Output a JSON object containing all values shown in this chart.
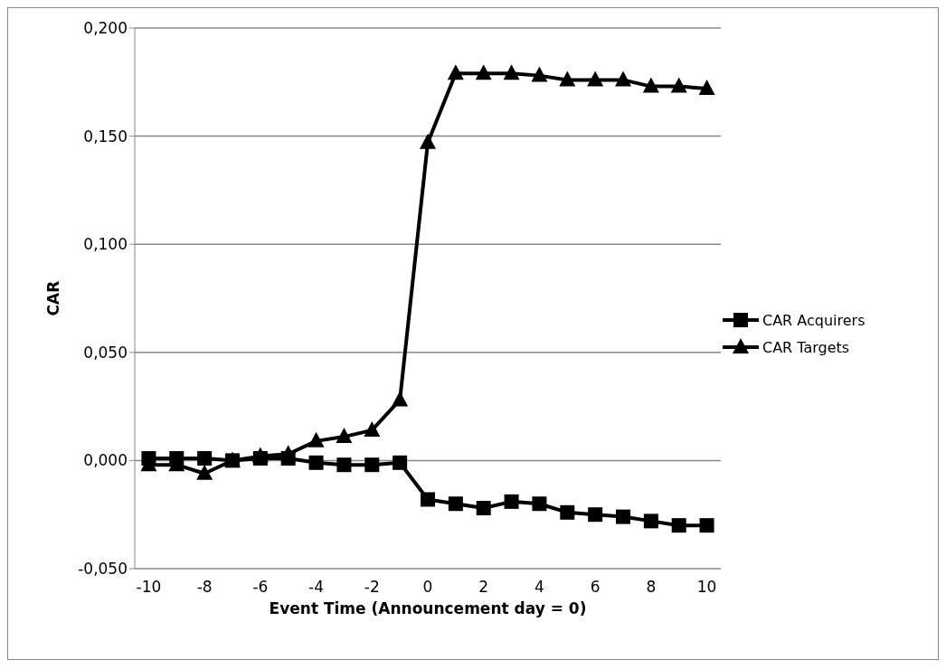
{
  "chart_data": {
    "type": "line",
    "xlabel": "Event Time (Announcement day = 0)",
    "ylabel": "CAR",
    "x": [
      -10,
      -9,
      -8,
      -7,
      -6,
      -5,
      -4,
      -3,
      -2,
      -1,
      0,
      1,
      2,
      3,
      4,
      5,
      6,
      7,
      8,
      9,
      10
    ],
    "series": [
      {
        "name": "CAR Acquirers",
        "color": "#000000",
        "marker": "square",
        "values": [
          0.001,
          0.001,
          0.001,
          0.0,
          0.001,
          0.001,
          -0.001,
          -0.002,
          -0.002,
          -0.001,
          -0.018,
          -0.02,
          -0.022,
          -0.019,
          -0.02,
          -0.024,
          -0.025,
          -0.026,
          -0.028,
          -0.03,
          -0.03
        ]
      },
      {
        "name": "CAR Targets",
        "color": "#000000",
        "marker": "triangle",
        "values": [
          -0.002,
          -0.002,
          -0.006,
          0.0,
          0.002,
          0.003,
          0.009,
          0.011,
          0.014,
          0.028,
          0.147,
          0.179,
          0.179,
          0.179,
          0.178,
          0.176,
          0.176,
          0.176,
          0.173,
          0.173,
          0.172
        ]
      }
    ],
    "xlim": [
      -10.5,
      10.5
    ],
    "xticks": [
      -10,
      -8,
      -6,
      -4,
      -2,
      0,
      2,
      4,
      6,
      8,
      10
    ],
    "ylim": [
      -0.05,
      0.2
    ],
    "yticks": [
      {
        "value": -0.05,
        "label": "-0,050"
      },
      {
        "value": 0,
        "label": "0,000"
      },
      {
        "value": 0.05,
        "label": "0,050"
      },
      {
        "value": 0.1,
        "label": "0,100"
      },
      {
        "value": 0.15,
        "label": "0,150"
      },
      {
        "value": 0.2,
        "label": "0,200"
      }
    ],
    "grid": "y",
    "legend": "right",
    "line_style": "solid"
  }
}
